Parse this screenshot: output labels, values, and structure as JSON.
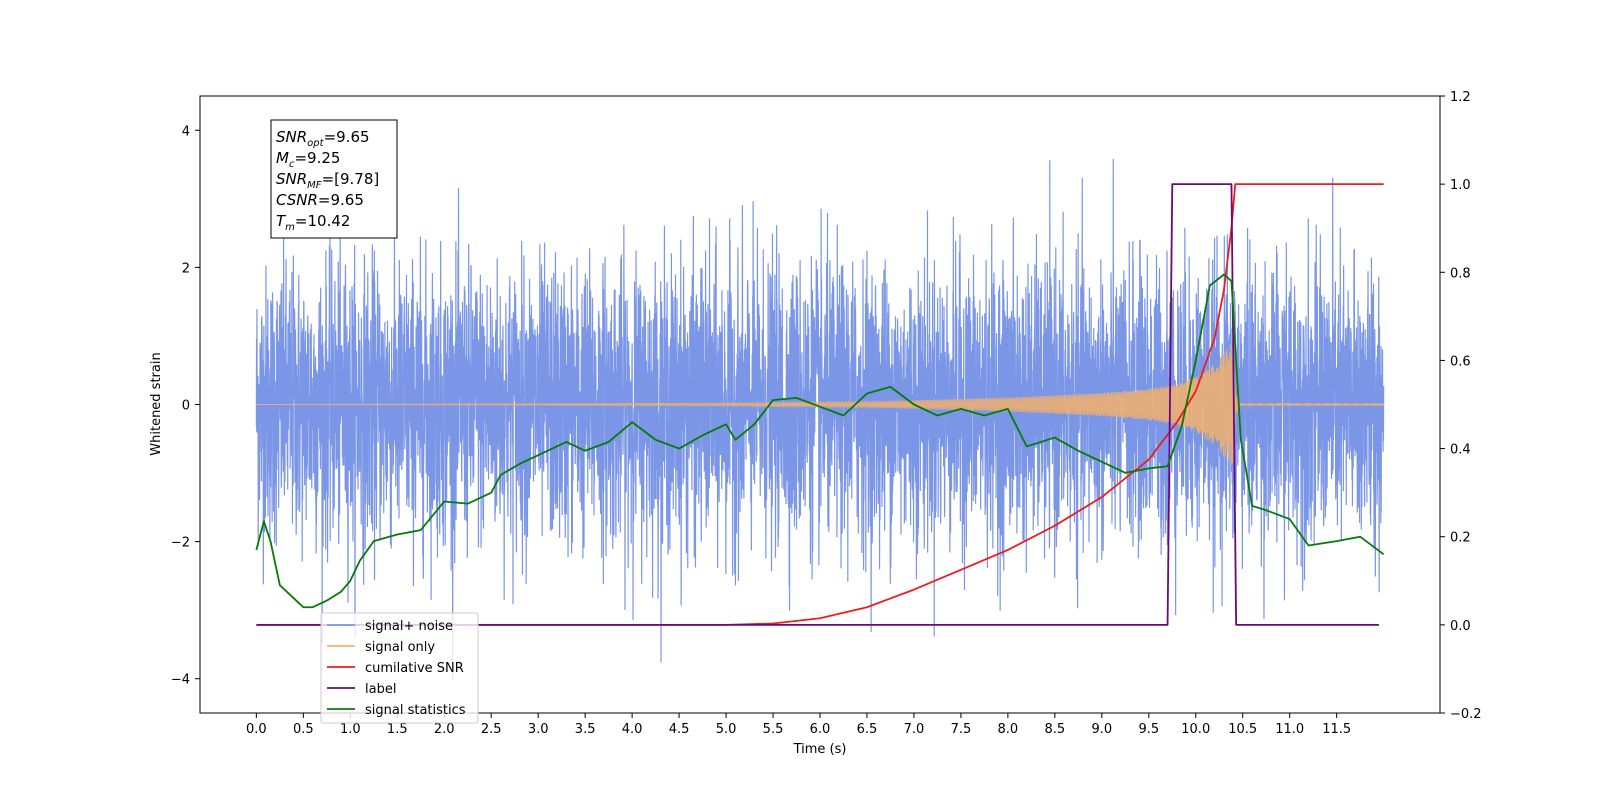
{
  "chart_data": {
    "type": "line",
    "xlabel": "Time (s)",
    "ylabel": "Whitened strain",
    "xlim": [
      -0.6,
      12.6
    ],
    "ylim": [
      -4.5,
      4.5
    ],
    "y2lim": [
      -0.2,
      1.2
    ],
    "x_ticks": [
      0.0,
      0.5,
      1.0,
      1.5,
      2.0,
      2.5,
      3.0,
      3.5,
      4.0,
      4.5,
      5.0,
      5.5,
      6.0,
      6.5,
      7.0,
      7.5,
      8.0,
      8.5,
      9.0,
      9.5,
      10.0,
      10.5,
      11.0,
      11.5
    ],
    "x_tick_labels": [
      "0.0",
      "0.5",
      "1.0",
      "1.5",
      "2.0",
      "2.5",
      "3.0",
      "3.5",
      "4.0",
      "4.5",
      "5.0",
      "5.5",
      "6.0",
      "6.5",
      "7.0",
      "7.5",
      "8.0",
      "8.5",
      "9.0",
      "9.5",
      "10.0",
      "10.5",
      "11.0",
      "11.5"
    ],
    "y_ticks": [
      -4,
      -2,
      0,
      2,
      4
    ],
    "y_tick_labels": [
      "−4",
      "−2",
      "0",
      "2",
      "4"
    ],
    "y2_ticks": [
      -0.2,
      0.0,
      0.2,
      0.4,
      0.6,
      0.8,
      1.0,
      1.2
    ],
    "y2_tick_labels": [
      "−0.2",
      "0.0",
      "0.2",
      "0.4",
      "0.6",
      "0.8",
      "1.0",
      "1.2"
    ],
    "grid": false,
    "legend_position": "bottom-left",
    "annotation": {
      "lines": [
        {
          "main": "SNR",
          "sub": "opt",
          "value": "=9.65"
        },
        {
          "main": "M",
          "sub": "c",
          "value": "=9.25"
        },
        {
          "main": "SNR",
          "sub": "MF",
          "value": "=[9.78]"
        },
        {
          "main": "CSNR",
          "sub": "",
          "value": "=9.65"
        },
        {
          "main": "T",
          "sub": "m",
          "value": "=10.42"
        }
      ]
    },
    "series": [
      {
        "name": "signal+ noise",
        "axis": "left",
        "color": "#7b96e6",
        "description_kind": "noise",
        "t_start": 0.0,
        "t_end": 12.0,
        "std": 1.0,
        "range": [
          -4.1,
          4.1
        ]
      },
      {
        "name": "signal only",
        "axis": "left",
        "color": "#f5b26b",
        "description_kind": "chirp",
        "t_start": 0.0,
        "t_end": 12.0,
        "merger_time": 10.42,
        "peak_amplitude": 0.95,
        "envelope_points": [
          [
            0.0,
            0.0
          ],
          [
            5.0,
            0.02
          ],
          [
            6.5,
            0.04
          ],
          [
            8.0,
            0.1
          ],
          [
            9.0,
            0.17
          ],
          [
            9.5,
            0.23
          ],
          [
            9.8,
            0.3
          ],
          [
            10.0,
            0.4
          ],
          [
            10.2,
            0.6
          ],
          [
            10.35,
            0.85
          ],
          [
            10.42,
            0.95
          ],
          [
            10.45,
            0.02
          ],
          [
            12.0,
            0.02
          ]
        ]
      },
      {
        "name": "cumilative SNR",
        "axis": "right",
        "color": "#ee1c1c",
        "points": [
          [
            0.0,
            0.0
          ],
          [
            5.0,
            0.0
          ],
          [
            5.5,
            0.003
          ],
          [
            6.0,
            0.015
          ],
          [
            6.5,
            0.04
          ],
          [
            7.0,
            0.08
          ],
          [
            7.5,
            0.125
          ],
          [
            8.0,
            0.17
          ],
          [
            8.5,
            0.225
          ],
          [
            9.0,
            0.29
          ],
          [
            9.5,
            0.375
          ],
          [
            9.8,
            0.46
          ],
          [
            10.0,
            0.53
          ],
          [
            10.2,
            0.65
          ],
          [
            10.3,
            0.76
          ],
          [
            10.38,
            0.9
          ],
          [
            10.42,
            1.0
          ],
          [
            12.0,
            1.0
          ]
        ]
      },
      {
        "name": "label",
        "axis": "right",
        "color": "#6a0a7a",
        "points": [
          [
            0.0,
            0.0
          ],
          [
            9.7,
            0.0
          ],
          [
            9.75,
            1.0
          ],
          [
            10.38,
            1.0
          ],
          [
            10.43,
            0.0
          ],
          [
            11.95,
            0.0
          ]
        ]
      },
      {
        "name": "signal statistics",
        "axis": "right",
        "color": "#087a08",
        "points": [
          [
            0.0,
            0.17
          ],
          [
            0.08,
            0.235
          ],
          [
            0.15,
            0.19
          ],
          [
            0.25,
            0.09
          ],
          [
            0.4,
            0.06
          ],
          [
            0.5,
            0.04
          ],
          [
            0.6,
            0.04
          ],
          [
            0.75,
            0.055
          ],
          [
            0.9,
            0.075
          ],
          [
            1.0,
            0.1
          ],
          [
            1.1,
            0.145
          ],
          [
            1.25,
            0.19
          ],
          [
            1.5,
            0.205
          ],
          [
            1.75,
            0.215
          ],
          [
            2.0,
            0.28
          ],
          [
            2.25,
            0.275
          ],
          [
            2.5,
            0.3
          ],
          [
            2.6,
            0.34
          ],
          [
            2.8,
            0.365
          ],
          [
            3.0,
            0.385
          ],
          [
            3.3,
            0.415
          ],
          [
            3.5,
            0.395
          ],
          [
            3.75,
            0.415
          ],
          [
            4.0,
            0.46
          ],
          [
            4.25,
            0.42
          ],
          [
            4.5,
            0.4
          ],
          [
            4.75,
            0.43
          ],
          [
            5.0,
            0.455
          ],
          [
            5.1,
            0.42
          ],
          [
            5.3,
            0.455
          ],
          [
            5.5,
            0.51
          ],
          [
            5.75,
            0.515
          ],
          [
            6.0,
            0.495
          ],
          [
            6.25,
            0.475
          ],
          [
            6.5,
            0.525
          ],
          [
            6.75,
            0.54
          ],
          [
            7.0,
            0.5
          ],
          [
            7.25,
            0.475
          ],
          [
            7.5,
            0.49
          ],
          [
            7.75,
            0.475
          ],
          [
            8.0,
            0.49
          ],
          [
            8.2,
            0.405
          ],
          [
            8.5,
            0.425
          ],
          [
            8.75,
            0.395
          ],
          [
            9.0,
            0.37
          ],
          [
            9.25,
            0.345
          ],
          [
            9.5,
            0.355
          ],
          [
            9.7,
            0.36
          ],
          [
            9.85,
            0.45
          ],
          [
            10.0,
            0.6
          ],
          [
            10.15,
            0.77
          ],
          [
            10.3,
            0.795
          ],
          [
            10.38,
            0.78
          ],
          [
            10.48,
            0.42
          ],
          [
            10.6,
            0.27
          ],
          [
            10.75,
            0.26
          ],
          [
            11.0,
            0.24
          ],
          [
            11.2,
            0.18
          ],
          [
            11.5,
            0.19
          ],
          [
            11.75,
            0.2
          ],
          [
            12.0,
            0.16
          ]
        ]
      }
    ]
  }
}
